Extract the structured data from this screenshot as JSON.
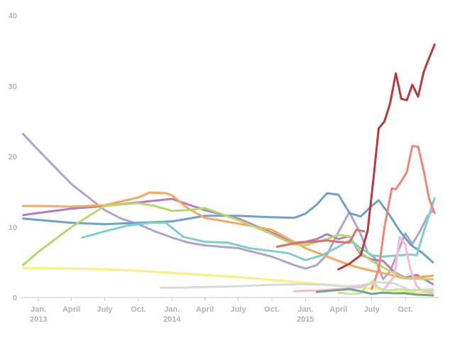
{
  "chart_data": {
    "type": "line",
    "title": "",
    "xlabel": "",
    "ylabel": "",
    "ylim": [
      0,
      40
    ],
    "y_ticks": [
      0,
      10,
      20,
      30,
      40
    ],
    "x_range": [
      "2012-11-15",
      "2015-12-31"
    ],
    "x_ticks": [
      {
        "date": "2013-01-01",
        "label": "Jan.",
        "sublabel": "2013"
      },
      {
        "date": "2013-04-01",
        "label": "April",
        "sublabel": ""
      },
      {
        "date": "2013-07-01",
        "label": "July",
        "sublabel": ""
      },
      {
        "date": "2013-10-01",
        "label": "Oct.",
        "sublabel": ""
      },
      {
        "date": "2014-01-01",
        "label": "Jan.",
        "sublabel": "2014"
      },
      {
        "date": "2014-04-01",
        "label": "April",
        "sublabel": ""
      },
      {
        "date": "2014-07-01",
        "label": "July",
        "sublabel": ""
      },
      {
        "date": "2014-10-01",
        "label": "Oct.",
        "sublabel": ""
      },
      {
        "date": "2015-01-01",
        "label": "Jan.",
        "sublabel": "2015"
      },
      {
        "date": "2015-04-01",
        "label": "April",
        "sublabel": ""
      },
      {
        "date": "2015-07-01",
        "label": "July",
        "sublabel": ""
      },
      {
        "date": "2015-10-01",
        "label": "Oct.",
        "sublabel": ""
      }
    ],
    "grid": false,
    "legend": "none",
    "series": [
      {
        "color": "#aea5cf",
        "points": [
          [
            "2012-11-20",
            23.2
          ],
          [
            "2013-01-01",
            20.9
          ],
          [
            "2013-04-01",
            16.1
          ],
          [
            "2013-07-01",
            12.4
          ],
          [
            "2013-08-15",
            11.2
          ],
          [
            "2013-10-01",
            10.4
          ],
          [
            "2013-11-15",
            9.4
          ],
          [
            "2014-01-01",
            8.5
          ],
          [
            "2014-02-15",
            7.8
          ],
          [
            "2014-04-01",
            7.4
          ],
          [
            "2014-07-01",
            7.0
          ],
          [
            "2014-10-01",
            5.8
          ],
          [
            "2014-12-01",
            4.6
          ],
          [
            "2015-01-01",
            4.1
          ],
          [
            "2015-02-01",
            4.6
          ],
          [
            "2015-03-01",
            6.1
          ],
          [
            "2015-04-01",
            9.3
          ],
          [
            "2015-05-01",
            12.1
          ],
          [
            "2015-06-01",
            9.0
          ],
          [
            "2015-06-20",
            6.4
          ],
          [
            "2015-07-10",
            5.6
          ],
          [
            "2015-08-01",
            2.6
          ],
          [
            "2015-08-20",
            3.7
          ],
          [
            "2015-09-10",
            6.4
          ],
          [
            "2015-10-01",
            9.1
          ],
          [
            "2015-10-20",
            7.6
          ],
          [
            "2015-11-10",
            9.4
          ],
          [
            "2015-12-01",
            11.6
          ],
          [
            "2015-12-15",
            12.3
          ]
        ]
      },
      {
        "color": "#6ea1cc",
        "points": [
          [
            "2012-11-20",
            11.2
          ],
          [
            "2013-01-01",
            11.0
          ],
          [
            "2013-04-01",
            10.6
          ],
          [
            "2013-07-01",
            10.4
          ],
          [
            "2013-10-01",
            10.6
          ],
          [
            "2014-01-01",
            10.8
          ],
          [
            "2014-04-01",
            11.6
          ],
          [
            "2014-07-01",
            11.6
          ],
          [
            "2014-10-01",
            11.4
          ],
          [
            "2014-12-01",
            11.3
          ],
          [
            "2015-01-01",
            11.9
          ],
          [
            "2015-02-01",
            13.2
          ],
          [
            "2015-03-01",
            14.8
          ],
          [
            "2015-04-01",
            14.6
          ],
          [
            "2015-05-01",
            12.0
          ],
          [
            "2015-06-01",
            11.5
          ],
          [
            "2015-07-01",
            13.0
          ],
          [
            "2015-07-20",
            13.8
          ],
          [
            "2015-08-15",
            12.0
          ],
          [
            "2015-09-15",
            9.5
          ],
          [
            "2015-10-15",
            7.5
          ],
          [
            "2015-11-15",
            6.4
          ],
          [
            "2015-12-15",
            5.0
          ]
        ]
      },
      {
        "color": "#b77cbf",
        "points": [
          [
            "2012-11-20",
            11.7
          ],
          [
            "2013-01-01",
            12.0
          ],
          [
            "2013-04-01",
            12.6
          ],
          [
            "2013-07-01",
            13.0
          ],
          [
            "2013-10-01",
            13.5
          ],
          [
            "2014-01-01",
            14.0
          ],
          [
            "2014-04-01",
            12.4
          ],
          [
            "2014-07-01",
            11.2
          ],
          [
            "2014-10-01",
            9.2
          ],
          [
            "2014-12-01",
            7.8
          ],
          [
            "2015-01-01",
            7.9
          ],
          [
            "2015-02-01",
            8.3
          ],
          [
            "2015-03-01",
            9.0
          ],
          [
            "2015-04-01",
            8.3
          ],
          [
            "2015-05-01",
            8.7
          ],
          [
            "2015-06-01",
            6.1
          ],
          [
            "2015-07-01",
            5.4
          ],
          [
            "2015-08-01",
            5.2
          ],
          [
            "2015-09-01",
            3.6
          ],
          [
            "2015-10-01",
            2.8
          ],
          [
            "2015-11-01",
            3.2
          ],
          [
            "2015-12-15",
            1.9
          ]
        ]
      },
      {
        "color": "#f8a75c",
        "points": [
          [
            "2012-11-20",
            13.0
          ],
          [
            "2013-01-01",
            13.0
          ],
          [
            "2013-04-01",
            12.9
          ],
          [
            "2013-07-01",
            13.1
          ],
          [
            "2013-10-01",
            14.2
          ],
          [
            "2013-11-01",
            14.9
          ],
          [
            "2013-12-15",
            14.8
          ],
          [
            "2014-01-01",
            14.5
          ],
          [
            "2014-02-15",
            12.6
          ],
          [
            "2014-04-01",
            11.3
          ],
          [
            "2014-07-01",
            10.5
          ],
          [
            "2014-10-01",
            9.6
          ],
          [
            "2015-01-01",
            7.0
          ],
          [
            "2015-02-15",
            6.1
          ],
          [
            "2015-04-01",
            5.2
          ],
          [
            "2015-05-15",
            4.4
          ],
          [
            "2015-07-01",
            3.8
          ],
          [
            "2015-08-15",
            3.3
          ],
          [
            "2015-10-01",
            2.7
          ],
          [
            "2015-12-15",
            3.1
          ]
        ]
      },
      {
        "color": "#b5d96c",
        "points": [
          [
            "2012-11-20",
            4.6
          ],
          [
            "2013-01-01",
            6.5
          ],
          [
            "2013-04-01",
            10.0
          ],
          [
            "2013-07-01",
            13.0
          ],
          [
            "2013-10-01",
            13.4
          ],
          [
            "2013-11-15",
            13.0
          ],
          [
            "2014-01-01",
            12.3
          ],
          [
            "2014-02-15",
            12.4
          ],
          [
            "2014-04-01",
            12.7
          ],
          [
            "2014-07-01",
            11.0
          ],
          [
            "2014-10-01",
            9.0
          ],
          [
            "2014-12-01",
            7.5
          ],
          [
            "2015-01-01",
            7.4
          ],
          [
            "2015-03-01",
            8.3
          ],
          [
            "2015-04-01",
            8.9
          ],
          [
            "2015-05-01",
            8.7
          ],
          [
            "2015-06-01",
            6.4
          ],
          [
            "2015-07-01",
            5.2
          ],
          [
            "2015-08-15",
            3.9
          ],
          [
            "2015-10-01",
            2.7
          ],
          [
            "2015-12-15",
            2.6
          ]
        ]
      },
      {
        "color": "#7fd0c4",
        "points": [
          [
            "2013-05-01",
            8.5
          ],
          [
            "2013-07-01",
            9.4
          ],
          [
            "2013-09-01",
            10.2
          ],
          [
            "2013-11-01",
            10.6
          ],
          [
            "2013-12-15",
            10.6
          ],
          [
            "2014-02-01",
            8.6
          ],
          [
            "2014-04-01",
            7.9
          ],
          [
            "2014-06-01",
            7.8
          ],
          [
            "2014-08-01",
            7.0
          ],
          [
            "2014-10-01",
            6.6
          ],
          [
            "2014-11-15",
            6.3
          ],
          [
            "2015-01-01",
            5.3
          ],
          [
            "2015-02-15",
            6.0
          ],
          [
            "2015-04-01",
            7.2
          ],
          [
            "2015-05-01",
            8.1
          ],
          [
            "2015-06-01",
            7.0
          ],
          [
            "2015-07-01",
            6.0
          ],
          [
            "2015-08-01",
            5.8
          ],
          [
            "2015-09-15",
            6.0
          ],
          [
            "2015-10-15",
            6.1
          ],
          [
            "2015-11-01",
            6.0
          ],
          [
            "2015-11-20",
            9.3
          ],
          [
            "2015-12-20",
            14.1
          ]
        ]
      },
      {
        "color": "#fbf07a",
        "points": [
          [
            "2012-11-20",
            4.2
          ],
          [
            "2013-04-01",
            4.1
          ],
          [
            "2013-07-01",
            4.0
          ],
          [
            "2013-10-01",
            3.8
          ],
          [
            "2014-01-01",
            3.5
          ],
          [
            "2014-04-01",
            3.2
          ],
          [
            "2014-07-01",
            2.9
          ],
          [
            "2014-10-01",
            2.5
          ],
          [
            "2015-01-01",
            2.1
          ],
          [
            "2015-04-01",
            1.7
          ],
          [
            "2015-07-01",
            1.3
          ],
          [
            "2015-10-01",
            0.8
          ],
          [
            "2015-12-15",
            0.6
          ]
        ]
      },
      {
        "color": "#d9d9d9",
        "points": [
          [
            "2013-12-01",
            1.4
          ],
          [
            "2014-02-01",
            1.4
          ],
          [
            "2014-04-01",
            1.5
          ],
          [
            "2014-07-01",
            1.6
          ],
          [
            "2014-10-01",
            1.8
          ],
          [
            "2015-01-01",
            1.9
          ],
          [
            "2015-03-01",
            1.8
          ],
          [
            "2015-04-15",
            1.6
          ],
          [
            "2015-06-01",
            1.7
          ],
          [
            "2015-07-15",
            2.2
          ],
          [
            "2015-09-01",
            2.0
          ],
          [
            "2015-10-15",
            1.0
          ],
          [
            "2015-12-15",
            1.2
          ]
        ]
      },
      {
        "color": "#e07166",
        "points": [
          [
            "2014-10-15",
            7.2
          ],
          [
            "2014-12-01",
            7.7
          ],
          [
            "2015-01-15",
            7.9
          ],
          [
            "2015-03-01",
            8.1
          ],
          [
            "2015-04-01",
            7.9
          ],
          [
            "2015-05-01",
            7.8
          ],
          [
            "2015-05-20",
            9.6
          ],
          [
            "2015-06-10",
            9.4
          ]
        ]
      },
      {
        "color": "#f0857a",
        "points": [
          [
            "2015-07-01",
            1.2
          ],
          [
            "2015-07-20",
            4.0
          ],
          [
            "2015-08-05",
            10.0
          ],
          [
            "2015-08-25",
            15.5
          ],
          [
            "2015-09-05",
            15.4
          ],
          [
            "2015-09-20",
            16.5
          ],
          [
            "2015-10-05",
            17.8
          ],
          [
            "2015-10-20",
            21.5
          ],
          [
            "2015-11-05",
            21.4
          ],
          [
            "2015-11-20",
            18.0
          ],
          [
            "2015-12-05",
            14.0
          ],
          [
            "2015-12-20",
            12.0
          ]
        ]
      },
      {
        "color": "#f9b9d1",
        "points": [
          [
            "2014-12-01",
            0.9
          ],
          [
            "2015-02-01",
            1.0
          ],
          [
            "2015-04-01",
            1.2
          ],
          [
            "2015-06-01",
            1.5
          ],
          [
            "2015-07-01",
            2.0
          ],
          [
            "2015-08-01",
            1.0
          ],
          [
            "2015-09-01",
            3.0
          ],
          [
            "2015-09-15",
            8.6
          ],
          [
            "2015-10-01",
            7.5
          ],
          [
            "2015-10-15",
            4.0
          ],
          [
            "2015-11-01",
            1.6
          ],
          [
            "2015-11-15",
            1.0
          ],
          [
            "2015-12-15",
            0.6
          ]
        ]
      },
      {
        "color": "#c9e3a4",
        "points": [
          [
            "2015-04-01",
            0.7
          ],
          [
            "2015-05-01",
            0.5
          ],
          [
            "2015-06-01",
            0.6
          ],
          [
            "2015-06-20",
            1.8
          ],
          [
            "2015-07-05",
            2.4
          ],
          [
            "2015-07-20",
            1.3
          ],
          [
            "2015-08-15",
            1.0
          ],
          [
            "2015-09-15",
            1.2
          ],
          [
            "2015-10-15",
            1.0
          ],
          [
            "2015-11-15",
            1.1
          ],
          [
            "2015-12-15",
            0.9
          ]
        ]
      },
      {
        "color": "#6fa98a",
        "points": [
          [
            "2015-02-01",
            0.8
          ],
          [
            "2015-03-15",
            1.0
          ],
          [
            "2015-05-01",
            1.2
          ],
          [
            "2015-06-01",
            0.9
          ],
          [
            "2015-07-01",
            0.5
          ],
          [
            "2015-08-01",
            0.7
          ],
          [
            "2015-09-01",
            0.6
          ],
          [
            "2015-10-01",
            0.6
          ],
          [
            "2015-11-01",
            0.4
          ],
          [
            "2015-12-15",
            0.3
          ]
        ]
      },
      {
        "color": "#b83a3f",
        "points": [
          [
            "2015-04-01",
            4.0
          ],
          [
            "2015-05-01",
            4.8
          ],
          [
            "2015-06-01",
            6.0
          ],
          [
            "2015-06-20",
            9.5
          ],
          [
            "2015-07-05",
            16.5
          ],
          [
            "2015-07-20",
            24.0
          ],
          [
            "2015-08-05",
            25.0
          ],
          [
            "2015-08-20",
            27.5
          ],
          [
            "2015-09-05",
            31.8
          ],
          [
            "2015-09-20",
            28.2
          ],
          [
            "2015-10-05",
            28.0
          ],
          [
            "2015-10-20",
            30.2
          ],
          [
            "2015-11-05",
            28.5
          ],
          [
            "2015-11-20",
            32.0
          ],
          [
            "2015-12-05",
            34.0
          ],
          [
            "2015-12-20",
            35.9
          ]
        ]
      }
    ]
  }
}
